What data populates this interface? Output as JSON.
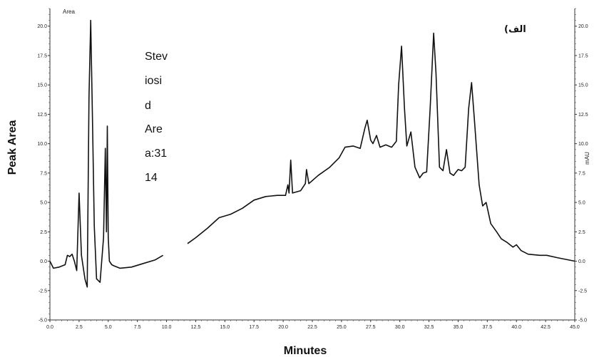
{
  "chart_data": {
    "type": "line",
    "xlabel": "Minutes",
    "ylabel": "Peak Area",
    "y2label": "mAU",
    "series_label": "Area",
    "panel_label": "الف)",
    "annotation_lines": [
      "Stev",
      "iosi",
      "d",
      "Are",
      "a:31",
      "14"
    ],
    "xlim": [
      0,
      45
    ],
    "ylim": [
      -5,
      21.5
    ],
    "x_ticks": [
      "0.0",
      "2.5",
      "5.0",
      "7.5",
      "10.0",
      "12.5",
      "15.0",
      "17.5",
      "20.0",
      "22.5",
      "25.0",
      "27.5",
      "30.0",
      "32.5",
      "35.0",
      "37.5",
      "40.0",
      "42.5",
      "45.0"
    ],
    "y_ticks": [
      "-5.0",
      "-2.5",
      "0.0",
      "2.5",
      "5.0",
      "7.5",
      "10.0",
      "12.5",
      "15.0",
      "17.5",
      "20.0"
    ],
    "grid": false,
    "series": [
      {
        "name": "Area",
        "segments": [
          [
            [
              0,
              0
            ],
            [
              0.3,
              -0.6
            ],
            [
              0.8,
              -0.5
            ],
            [
              1.3,
              -0.3
            ],
            [
              1.5,
              0.5
            ],
            [
              1.7,
              0.4
            ],
            [
              1.9,
              0.6
            ],
            [
              2.1,
              0.0
            ],
            [
              2.3,
              -0.8
            ],
            [
              2.5,
              5.8
            ],
            [
              2.7,
              0.5
            ],
            [
              3.0,
              -1.5
            ],
            [
              3.2,
              -2.2
            ],
            [
              3.35,
              14.0
            ],
            [
              3.5,
              20.5
            ],
            [
              3.65,
              12.0
            ],
            [
              3.8,
              3.0
            ],
            [
              4.0,
              -1.5
            ],
            [
              4.3,
              -1.8
            ],
            [
              4.6,
              2.0
            ],
            [
              4.75,
              9.6
            ],
            [
              4.85,
              2.5
            ],
            [
              4.92,
              11.5
            ],
            [
              5.0,
              2.0
            ],
            [
              5.1,
              0.0
            ],
            [
              5.3,
              -0.3
            ],
            [
              5.5,
              -0.4
            ],
            [
              6.0,
              -0.6
            ],
            [
              7.0,
              -0.5
            ],
            [
              8.0,
              -0.2
            ],
            [
              9.0,
              0.1
            ],
            [
              9.7,
              0.5
            ]
          ],
          [
            [
              11.8,
              1.5
            ],
            [
              12.5,
              2.0
            ],
            [
              13.5,
              2.8
            ],
            [
              14.5,
              3.7
            ],
            [
              15.5,
              4.0
            ],
            [
              16.5,
              4.5
            ],
            [
              17.5,
              5.2
            ],
            [
              18.5,
              5.5
            ],
            [
              19.5,
              5.6
            ],
            [
              20.2,
              5.6
            ],
            [
              20.4,
              6.5
            ],
            [
              20.5,
              5.8
            ],
            [
              20.65,
              8.6
            ],
            [
              20.8,
              5.8
            ],
            [
              21.5,
              6.0
            ],
            [
              21.9,
              6.6
            ],
            [
              22.0,
              7.8
            ],
            [
              22.2,
              6.6
            ],
            [
              23.0,
              7.3
            ],
            [
              24.0,
              8.0
            ],
            [
              24.8,
              8.8
            ],
            [
              25.3,
              9.7
            ],
            [
              26.0,
              9.8
            ],
            [
              26.6,
              9.6
            ],
            [
              27.0,
              11.3
            ],
            [
              27.2,
              12.0
            ],
            [
              27.5,
              10.3
            ],
            [
              27.7,
              10.0
            ],
            [
              28.0,
              10.7
            ],
            [
              28.3,
              9.7
            ],
            [
              28.8,
              9.9
            ],
            [
              29.3,
              9.7
            ],
            [
              29.7,
              10.2
            ],
            [
              29.9,
              15.0
            ],
            [
              30.15,
              18.3
            ],
            [
              30.4,
              13.0
            ],
            [
              30.6,
              9.8
            ],
            [
              30.8,
              10.5
            ],
            [
              30.95,
              11.0
            ],
            [
              31.3,
              8.0
            ],
            [
              31.7,
              7.1
            ],
            [
              32.0,
              7.5
            ],
            [
              32.3,
              7.6
            ],
            [
              32.6,
              13.0
            ],
            [
              32.9,
              19.4
            ],
            [
              33.1,
              16.0
            ],
            [
              33.4,
              8.0
            ],
            [
              33.7,
              7.7
            ],
            [
              34.0,
              9.5
            ],
            [
              34.3,
              7.5
            ],
            [
              34.6,
              7.3
            ],
            [
              35.0,
              7.8
            ],
            [
              35.3,
              7.7
            ],
            [
              35.6,
              8.0
            ],
            [
              35.9,
              13.0
            ],
            [
              36.15,
              15.2
            ],
            [
              36.4,
              12.0
            ],
            [
              36.8,
              6.5
            ],
            [
              37.1,
              4.7
            ],
            [
              37.4,
              5.0
            ],
            [
              37.8,
              3.2
            ],
            [
              38.3,
              2.5
            ],
            [
              38.7,
              1.9
            ],
            [
              39.2,
              1.6
            ],
            [
              39.7,
              1.2
            ],
            [
              40.0,
              1.4
            ],
            [
              40.4,
              0.9
            ],
            [
              41.0,
              0.6
            ],
            [
              42.0,
              0.5
            ],
            [
              42.6,
              0.5
            ],
            [
              43.5,
              0.3
            ],
            [
              44.5,
              0.1
            ],
            [
              45.0,
              0.0
            ]
          ]
        ]
      }
    ]
  }
}
